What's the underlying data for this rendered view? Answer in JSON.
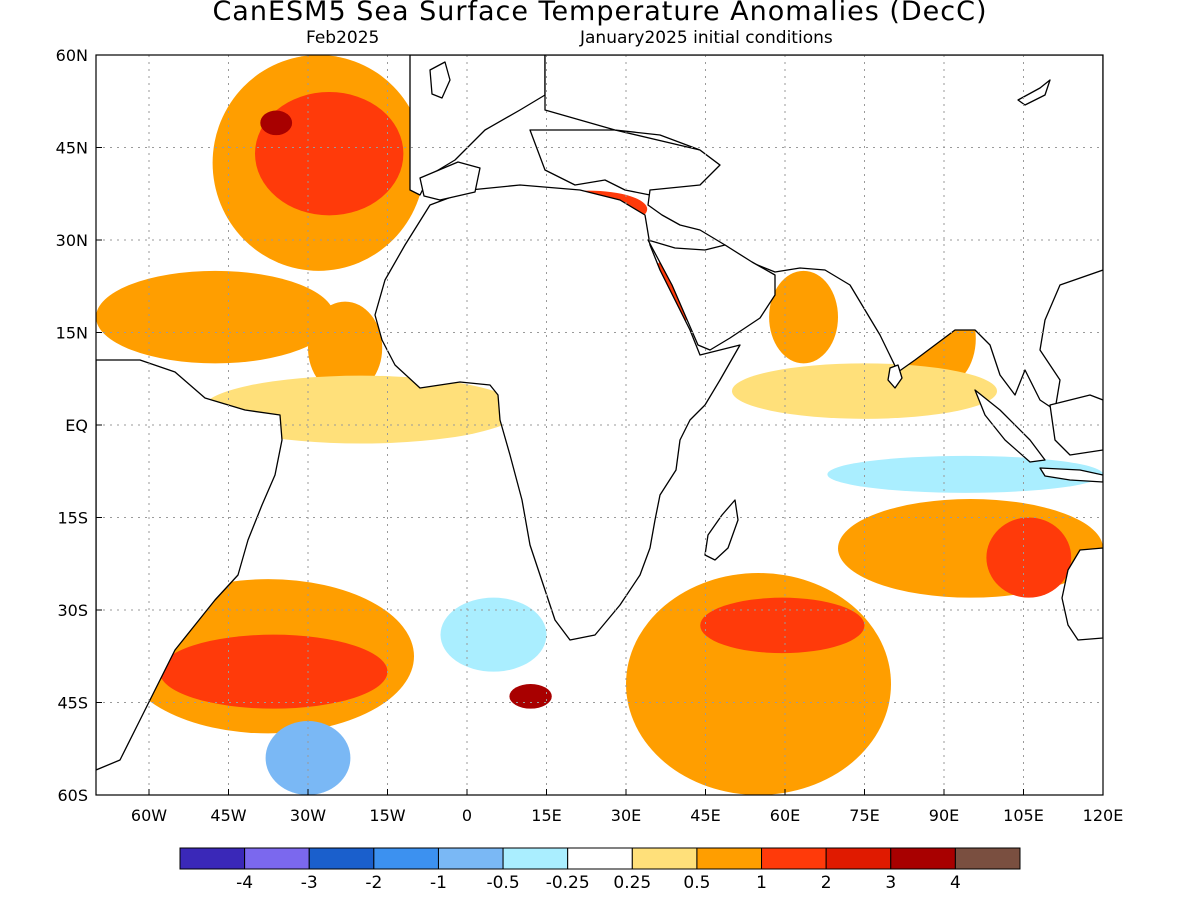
{
  "header": {
    "title": "CanESM5 Sea Surface Temperature Anomalies (DecC)",
    "valid_month": "Feb2025",
    "initial_conditions": "January2025 initial conditions"
  },
  "map": {
    "lon_range": [
      -70,
      120
    ],
    "lat_range": [
      -60,
      60
    ],
    "lat_ticks": [
      {
        "value": 60,
        "label": "60N"
      },
      {
        "value": 45,
        "label": "45N"
      },
      {
        "value": 30,
        "label": "30N"
      },
      {
        "value": 15,
        "label": "15N"
      },
      {
        "value": 0,
        "label": "EQ"
      },
      {
        "value": -15,
        "label": "15S"
      },
      {
        "value": -30,
        "label": "30S"
      },
      {
        "value": -45,
        "label": "45S"
      },
      {
        "value": -60,
        "label": "60S"
      }
    ],
    "lon_ticks": [
      {
        "value": -60,
        "label": "60W"
      },
      {
        "value": -45,
        "label": "45W"
      },
      {
        "value": -30,
        "label": "30W"
      },
      {
        "value": -15,
        "label": "15W"
      },
      {
        "value": 0,
        "label": "0"
      },
      {
        "value": 15,
        "label": "15E"
      },
      {
        "value": 30,
        "label": "30E"
      },
      {
        "value": 45,
        "label": "45E"
      },
      {
        "value": 60,
        "label": "60E"
      },
      {
        "value": 75,
        "label": "75E"
      },
      {
        "value": 90,
        "label": "90E"
      },
      {
        "value": 105,
        "label": "105E"
      },
      {
        "value": 120,
        "label": "120E"
      }
    ],
    "anomaly_regions": [
      {
        "name": "north-atlantic-warm",
        "color": "#ff9e00",
        "lon": [
          -48,
          -8
        ],
        "lat": [
          25,
          60
        ]
      },
      {
        "name": "north-atlantic-core",
        "color": "#ff3a0a",
        "lon": [
          -40,
          -12
        ],
        "lat": [
          34,
          54
        ]
      },
      {
        "name": "north-atlantic-max",
        "color": "#a80000",
        "lon": [
          -39,
          -33
        ],
        "lat": [
          47,
          51
        ]
      },
      {
        "name": "tropical-atlantic-warm",
        "color": "#ff9e00",
        "lon": [
          -70,
          -25
        ],
        "lat": [
          10,
          25
        ]
      },
      {
        "name": "eastern-tropical-atlantic",
        "color": "#ff9e00",
        "lon": [
          -30,
          -16
        ],
        "lat": [
          5,
          20
        ]
      },
      {
        "name": "equatorial-atlantic-weak",
        "color": "#ffe07a",
        "lon": [
          -50,
          10
        ],
        "lat": [
          -3,
          8
        ]
      },
      {
        "name": "mediterranean-warm",
        "color": "#ff3a0a",
        "lon": [
          12,
          34
        ],
        "lat": [
          32,
          38
        ]
      },
      {
        "name": "red-sea-warm",
        "color": "#ff3a0a",
        "lon": [
          34,
          42
        ],
        "lat": [
          14,
          27
        ]
      },
      {
        "name": "arabian-sea-warm",
        "color": "#ff9e00",
        "lon": [
          57,
          70
        ],
        "lat": [
          10,
          25
        ]
      },
      {
        "name": "bay-of-bengal-warm",
        "color": "#ff9e00",
        "lon": [
          82,
          96
        ],
        "lat": [
          6,
          22
        ]
      },
      {
        "name": "north-indian-weak",
        "color": "#ffe07a",
        "lon": [
          50,
          100
        ],
        "lat": [
          1,
          10
        ]
      },
      {
        "name": "equatorial-indian-cool",
        "color": "#aaeeff",
        "lon": [
          68,
          120
        ],
        "lat": [
          -11,
          -5
        ]
      },
      {
        "name": "east-indian-warm",
        "color": "#ff9e00",
        "lon": [
          70,
          120
        ],
        "lat": [
          -28,
          -12
        ]
      },
      {
        "name": "east-indian-core",
        "color": "#ff3a0a",
        "lon": [
          98,
          114
        ],
        "lat": [
          -28,
          -15
        ]
      },
      {
        "name": "south-indian-warm",
        "color": "#ff9e00",
        "lon": [
          30,
          80
        ],
        "lat": [
          -60,
          -24
        ]
      },
      {
        "name": "south-indian-core",
        "color": "#ff3a0a",
        "lon": [
          44,
          75
        ],
        "lat": [
          -37,
          -28
        ]
      },
      {
        "name": "agulhas-max",
        "color": "#a80000",
        "lon": [
          8,
          16
        ],
        "lat": [
          -46,
          -42
        ]
      },
      {
        "name": "southwest-atlantic-warm",
        "color": "#ff9e00",
        "lon": [
          -65,
          -10
        ],
        "lat": [
          -50,
          -25
        ]
      },
      {
        "name": "southwest-atlantic-core",
        "color": "#ff3a0a",
        "lon": [
          -58,
          -15
        ],
        "lat": [
          -46,
          -34
        ]
      },
      {
        "name": "south-atlantic-cool",
        "color": "#7ab8f5",
        "lon": [
          -38,
          -22
        ],
        "lat": [
          -60,
          -48
        ]
      },
      {
        "name": "central-south-atlantic-cool",
        "color": "#aaeeff",
        "lon": [
          -5,
          15
        ],
        "lat": [
          -40,
          -28
        ]
      }
    ]
  },
  "colorbar": {
    "colors": [
      "#3a28b8",
      "#7b68ee",
      "#1a5fcc",
      "#3c91f0",
      "#7ab8f5",
      "#aaeeff",
      "#ffffff",
      "#ffe07a",
      "#ff9e00",
      "#ff3a0a",
      "#e01a00",
      "#a80000",
      "#7a4f40"
    ],
    "labels": [
      "-4",
      "-3",
      "-2",
      "-1",
      "-0.5",
      "-0.25",
      "0.25",
      "0.5",
      "1",
      "2",
      "3",
      "4"
    ]
  }
}
